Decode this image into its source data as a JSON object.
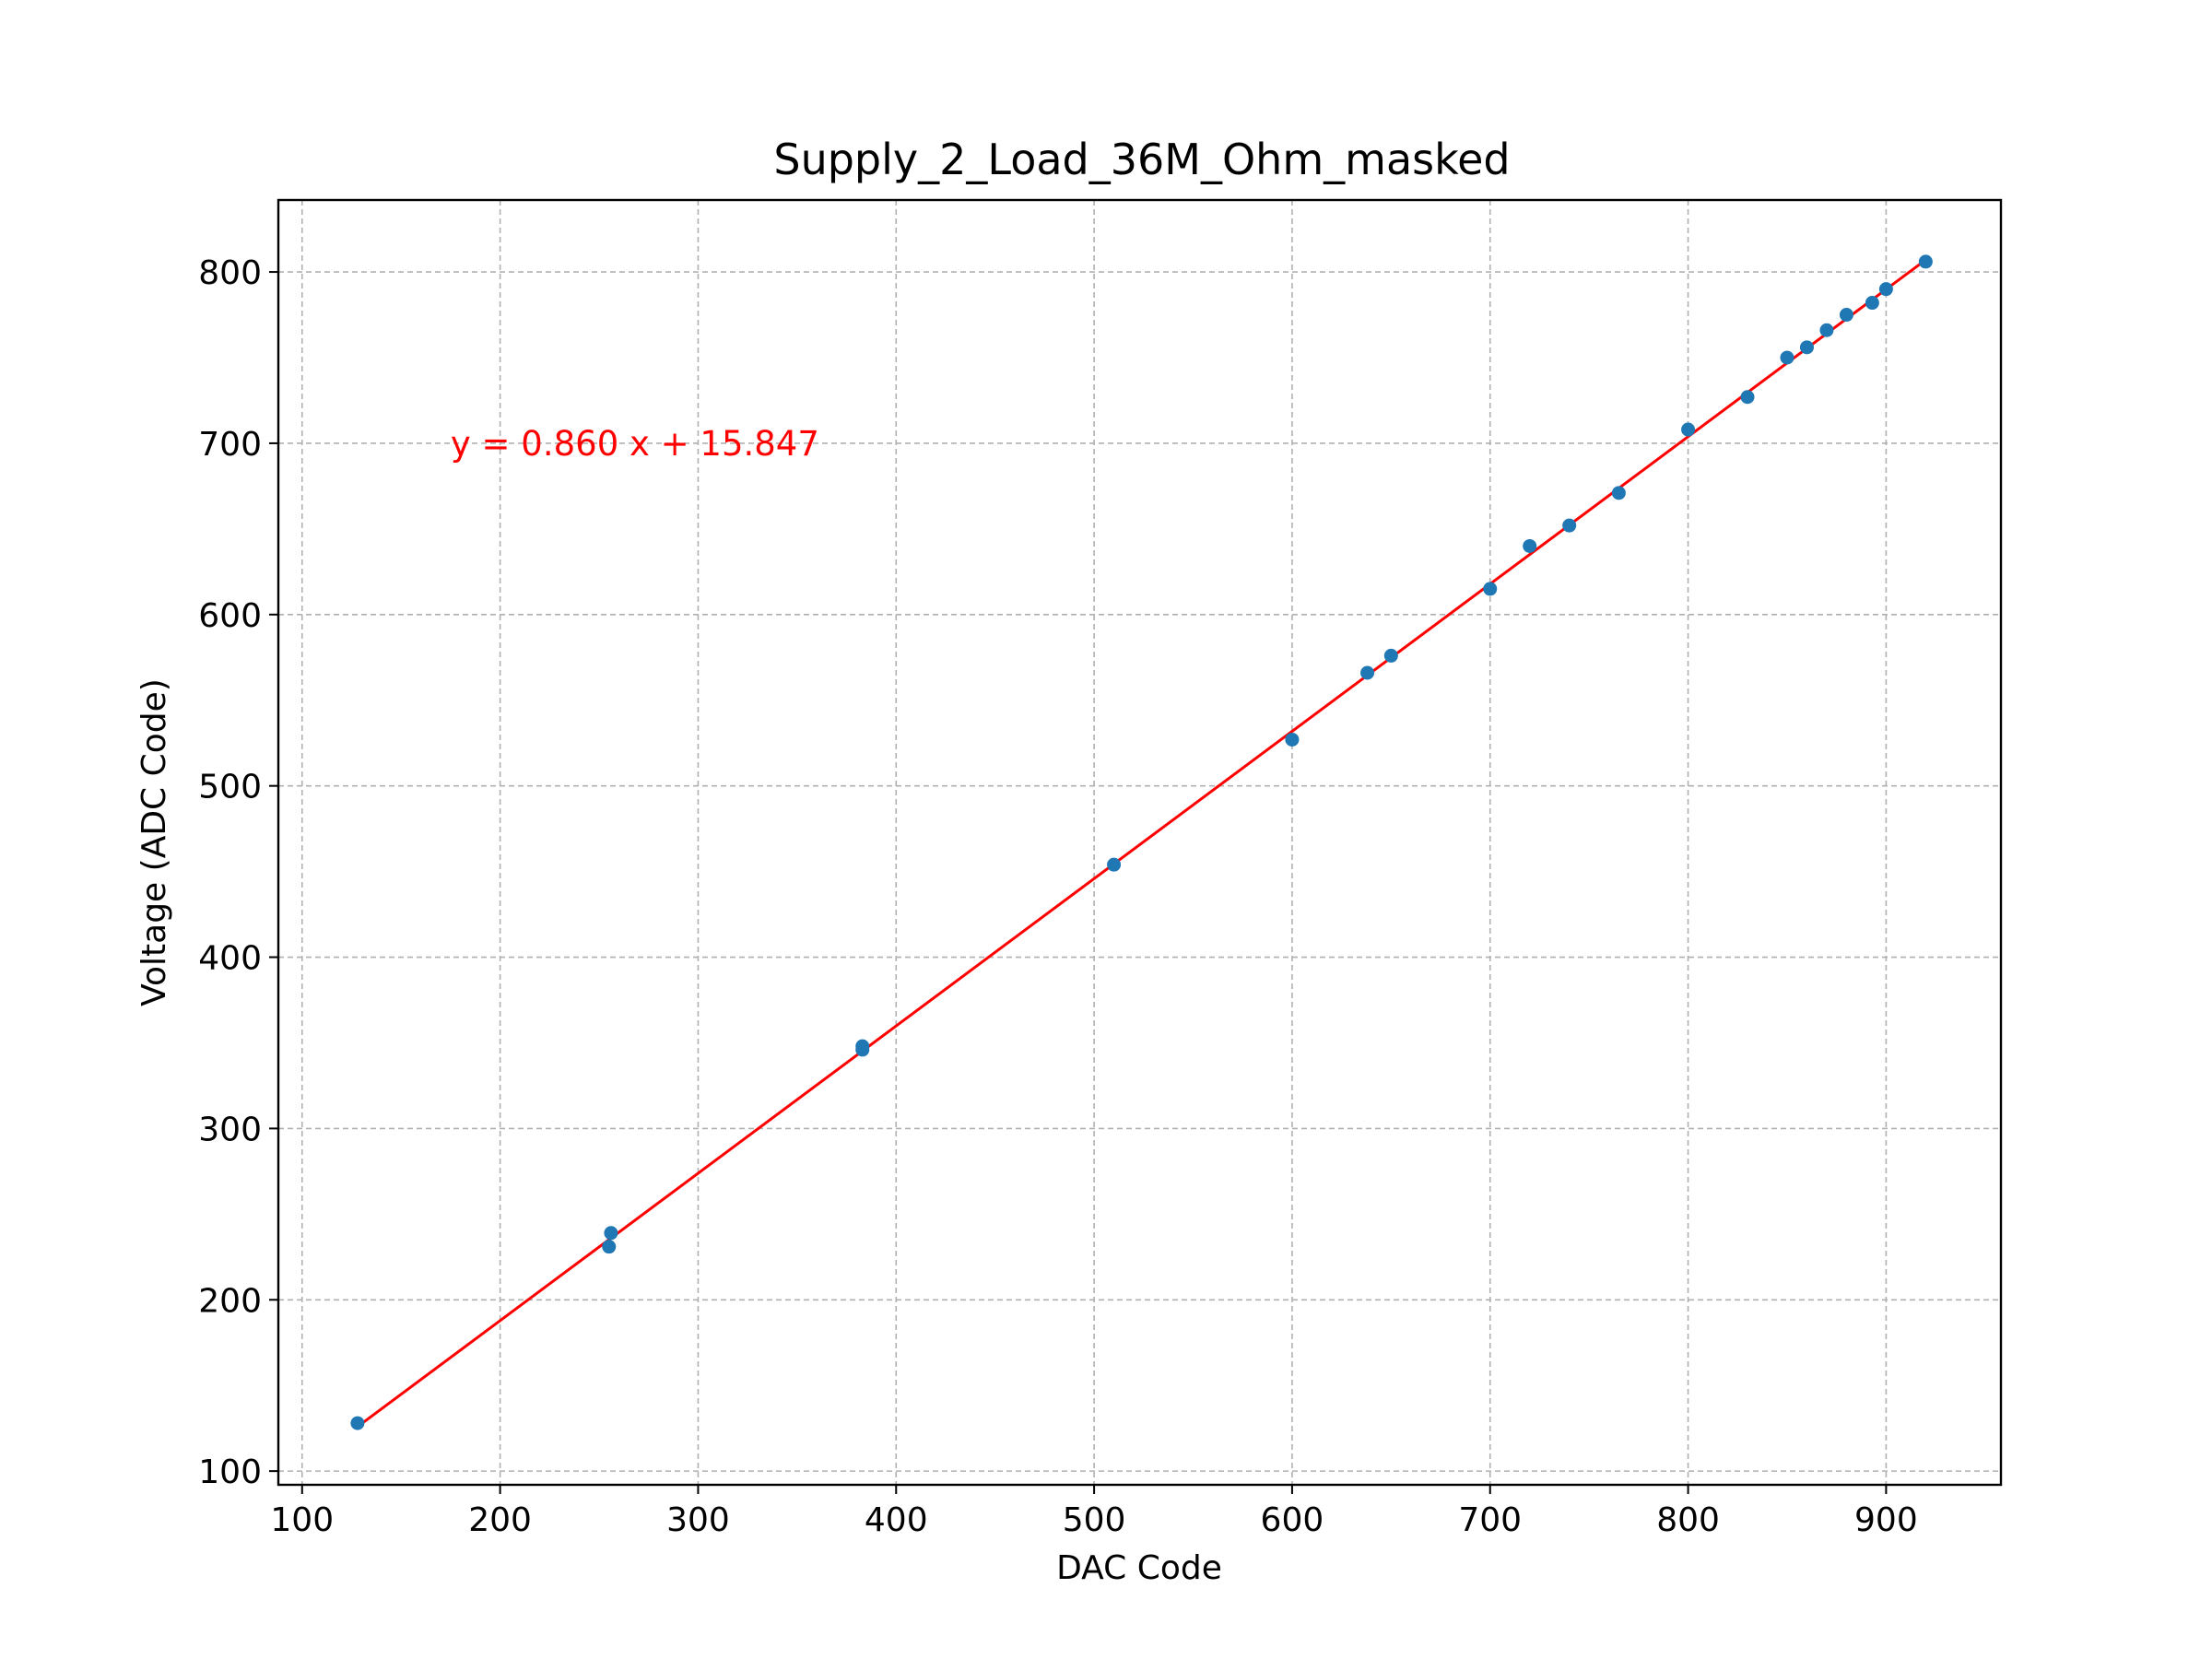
{
  "chart_data": {
    "type": "scatter",
    "title": "Supply_2_Load_36M_Ohm_masked",
    "xlabel": "DAC Code",
    "ylabel": "Voltage (ADC Code)",
    "xlim": [
      88,
      958
    ],
    "ylim": [
      92,
      842
    ],
    "xticks": [
      100,
      200,
      300,
      400,
      500,
      600,
      700,
      800,
      900
    ],
    "yticks": [
      100,
      200,
      300,
      400,
      500,
      600,
      700,
      800
    ],
    "grid": true,
    "points": [
      {
        "x": 128,
        "y": 128
      },
      {
        "x": 255,
        "y": 231
      },
      {
        "x": 256,
        "y": 239
      },
      {
        "x": 383,
        "y": 346
      },
      {
        "x": 383,
        "y": 348
      },
      {
        "x": 510,
        "y": 454
      },
      {
        "x": 600,
        "y": 527
      },
      {
        "x": 638,
        "y": 566
      },
      {
        "x": 650,
        "y": 576
      },
      {
        "x": 700,
        "y": 615
      },
      {
        "x": 720,
        "y": 640
      },
      {
        "x": 740,
        "y": 652
      },
      {
        "x": 765,
        "y": 671
      },
      {
        "x": 800,
        "y": 708
      },
      {
        "x": 830,
        "y": 727
      },
      {
        "x": 850,
        "y": 750
      },
      {
        "x": 860,
        "y": 756
      },
      {
        "x": 870,
        "y": 766
      },
      {
        "x": 880,
        "y": 775
      },
      {
        "x": 893,
        "y": 782
      },
      {
        "x": 900,
        "y": 790
      },
      {
        "x": 920,
        "y": 806
      }
    ],
    "fit_line": {
      "slope": 0.86,
      "intercept": 15.847,
      "x_range": [
        128,
        920
      ],
      "color": "#ff0000"
    },
    "annotation": {
      "text": "y = 0.860 x + 15.847",
      "x": 175,
      "y": 693,
      "color": "#ff0000"
    },
    "marker_color": "#1f77b4"
  }
}
